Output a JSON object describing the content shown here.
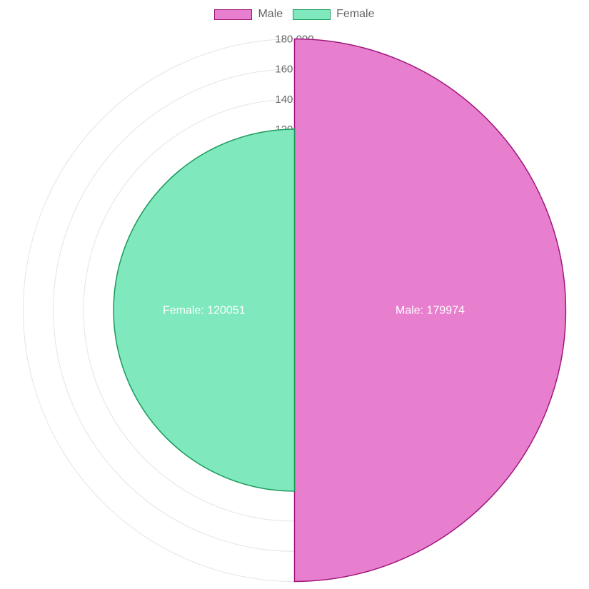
{
  "chart_data": {
    "type": "polarArea",
    "labels": [
      "Male",
      "Female"
    ],
    "values": [
      179974,
      120051
    ],
    "colors": {
      "Male": {
        "fill": "#e87fce",
        "stroke": "#a0167c"
      },
      "Female": {
        "fill": "#7fe8bd",
        "stroke": "#1a9a5c"
      }
    },
    "r_axis": {
      "min": 0,
      "max": 180000,
      "ticks": [
        120000,
        140000,
        160000,
        180000
      ],
      "tick_labels": [
        "120,000",
        "140,000",
        "160,000",
        "180,000"
      ],
      "grid": true
    },
    "data_labels": [
      "Male: 179974",
      "Female: 120051"
    ],
    "legend": {
      "position": "top",
      "items": [
        "Male",
        "Female"
      ]
    }
  }
}
